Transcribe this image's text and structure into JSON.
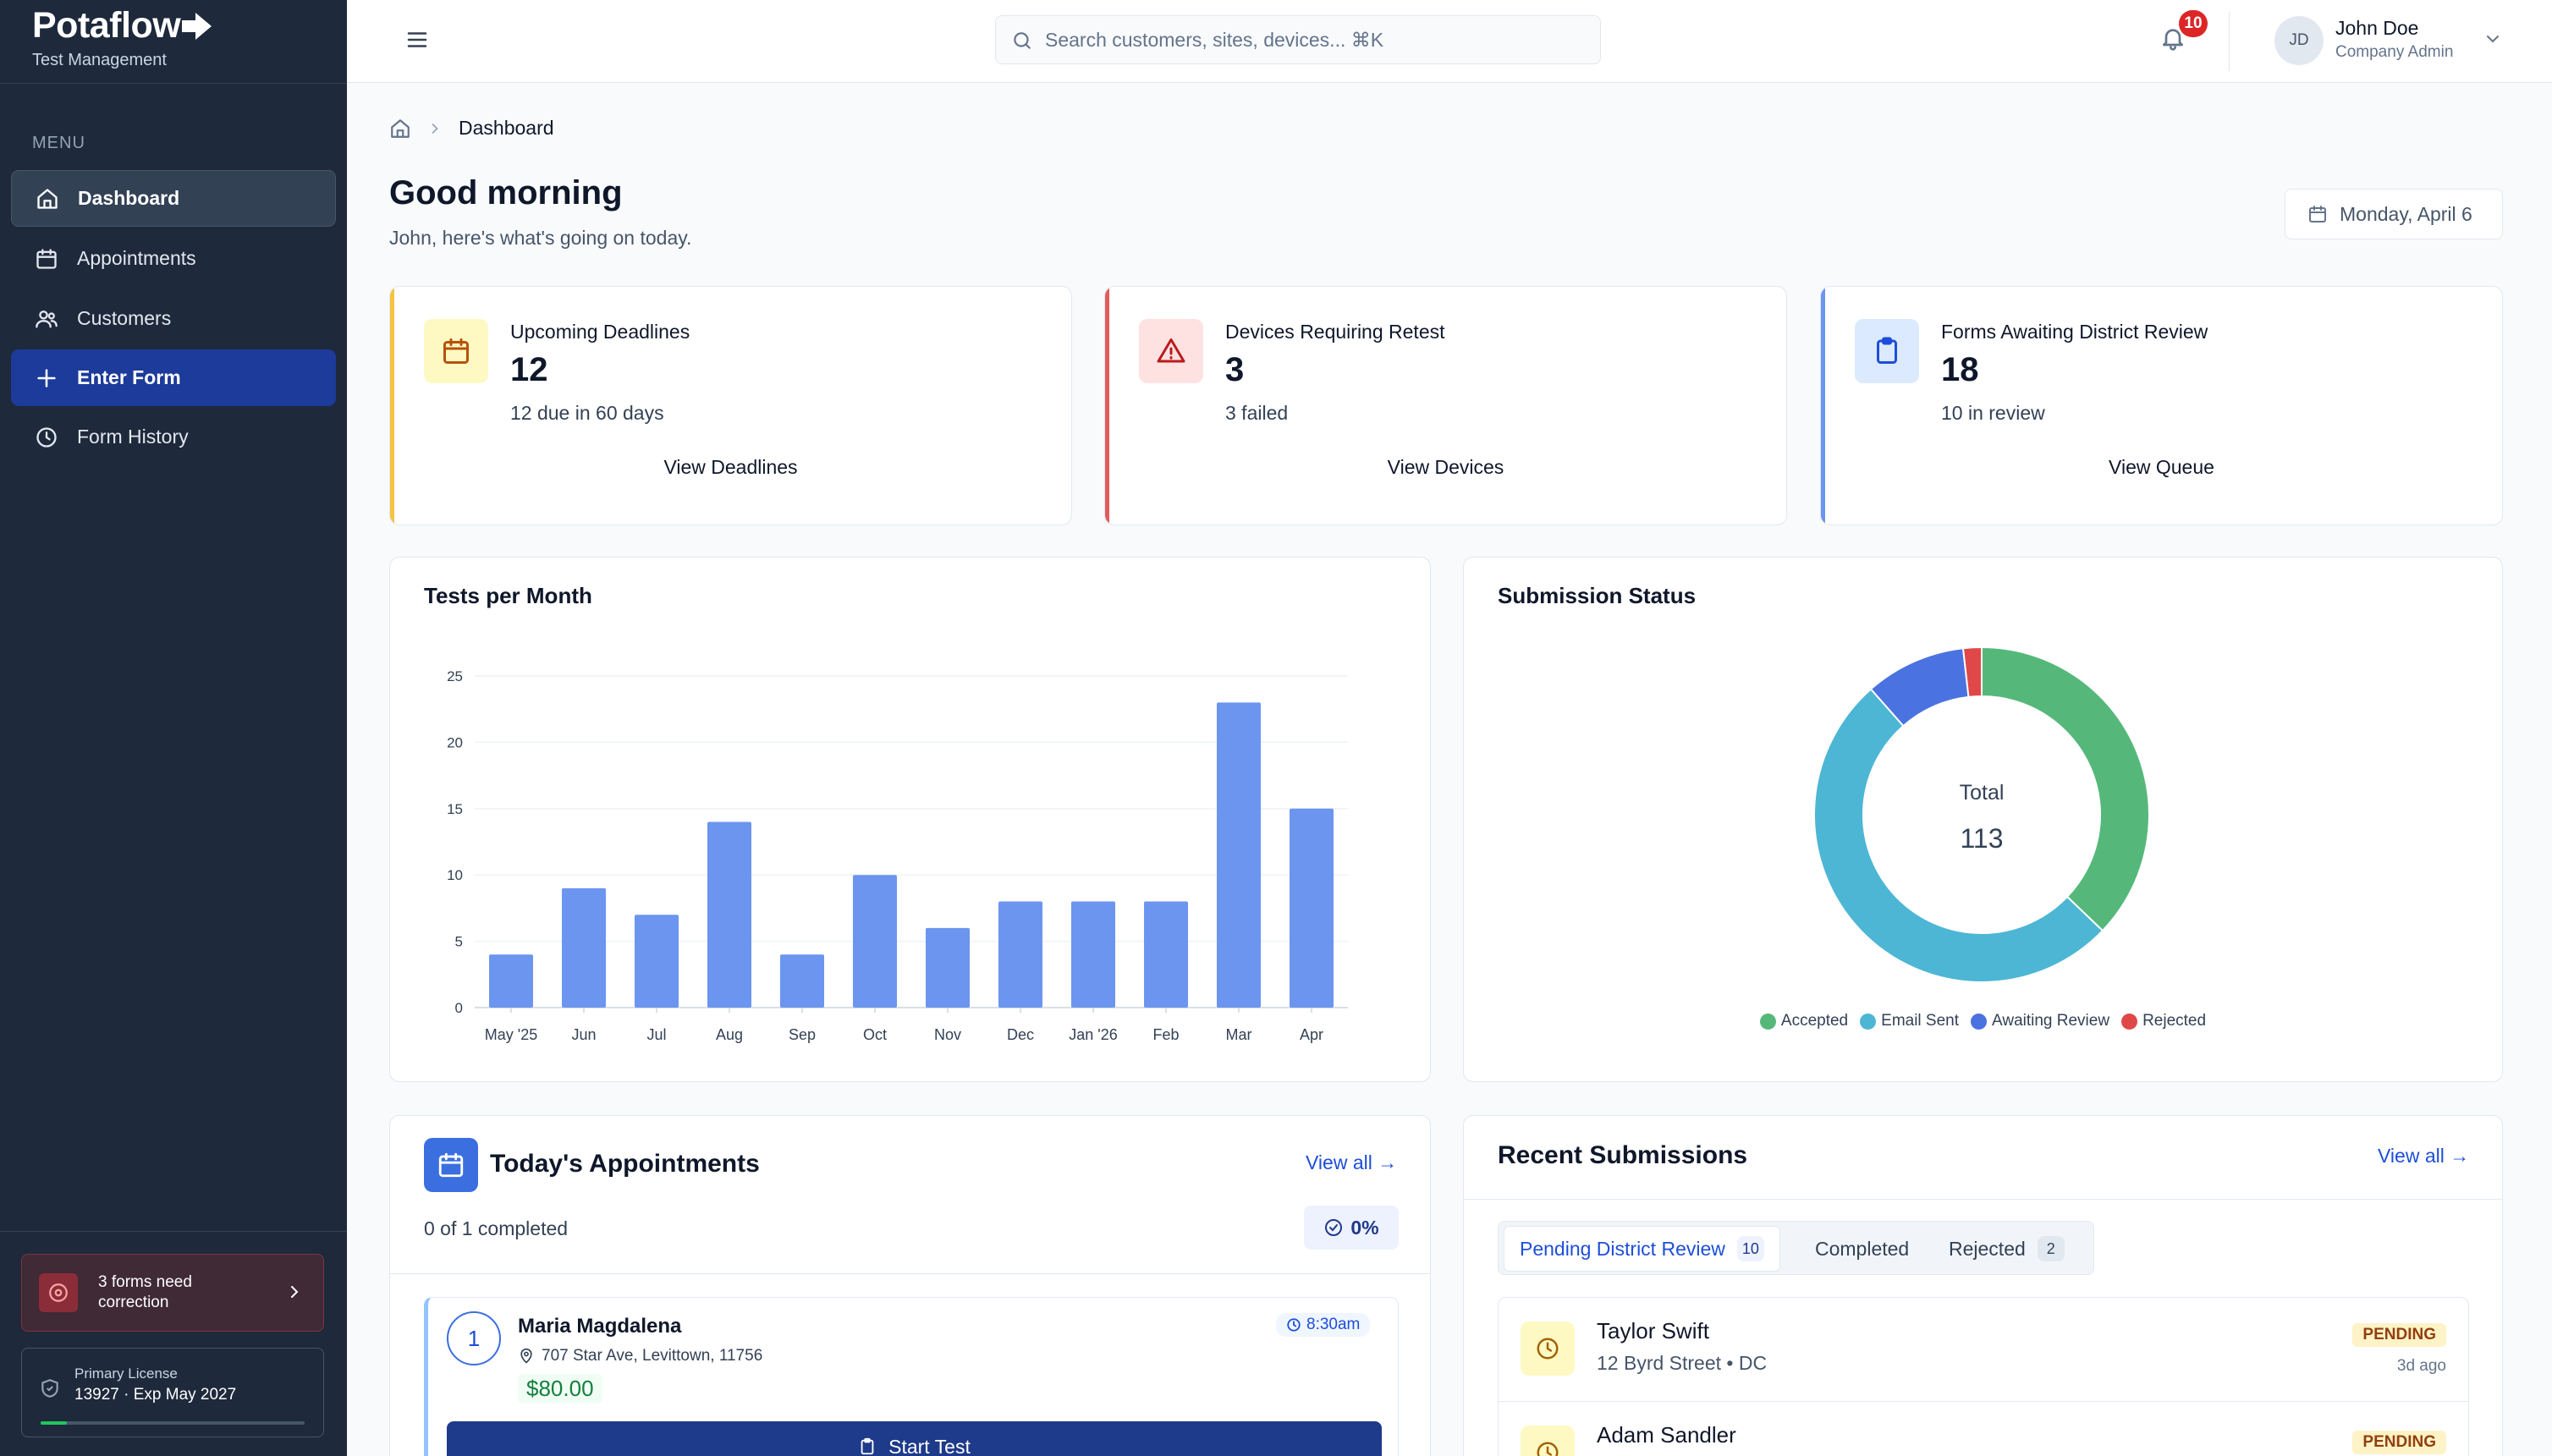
{
  "sidebar": {
    "brand": "Potaflow",
    "brand_sub": "Test Management",
    "menu_label": "MENU",
    "items": [
      {
        "label": "Dashboard",
        "icon": "home-icon"
      },
      {
        "label": "Appointments",
        "icon": "calendar-icon"
      },
      {
        "label": "Customers",
        "icon": "users-icon"
      },
      {
        "label": "Enter Form",
        "icon": "plus-icon"
      },
      {
        "label": "Form History",
        "icon": "clock-icon"
      }
    ],
    "alert_line1": "3 forms need",
    "alert_line2": "correction",
    "license_label": "Primary License",
    "license_value": "13927 · Exp May 2027",
    "license_progress": 0.1
  },
  "topbar": {
    "search_placeholder": "Search customers, sites, devices... ⌘K",
    "notifications": "10",
    "avatar_initials": "JD",
    "user_name": "John Doe",
    "user_role": "Company Admin"
  },
  "breadcrumb": {
    "current": "Dashboard"
  },
  "header": {
    "greeting": "Good morning",
    "subtitle": "John, here's what's going on today.",
    "date": "Monday, April 6"
  },
  "stats": [
    {
      "title": "Upcoming Deadlines",
      "value": "12",
      "sub": "12 due in 60 days",
      "link": "View Deadlines",
      "color": "#f5c242"
    },
    {
      "title": "Devices Requiring Retest",
      "value": "3",
      "sub": "3 failed",
      "link": "View Devices",
      "color": "#e25c5c"
    },
    {
      "title": "Forms Awaiting District Review",
      "value": "18",
      "sub": "10 in review",
      "link": "View Queue",
      "color": "#6b95ee"
    }
  ],
  "charts": {
    "tests_title": "Tests per Month",
    "status_title": "Submission Status",
    "donut_label": "Total",
    "donut_total": "113"
  },
  "chart_data": [
    {
      "type": "bar",
      "title": "Tests per Month",
      "categories": [
        "May '25",
        "Jun",
        "Jul",
        "Aug",
        "Sep",
        "Oct",
        "Nov",
        "Dec",
        "Jan '26",
        "Feb",
        "Mar",
        "Apr"
      ],
      "values": [
        4,
        9,
        7,
        14,
        4,
        10,
        6,
        8,
        8,
        8,
        23,
        15
      ],
      "yticks": [
        0,
        5,
        10,
        15,
        20,
        25
      ],
      "ylim": [
        0,
        25
      ],
      "color": "#6b95ee",
      "grid": true
    },
    {
      "type": "pie",
      "title": "Submission Status",
      "labels": [
        "Accepted",
        "Email Sent",
        "Awaiting Review",
        "Rejected"
      ],
      "values": [
        42,
        58,
        11,
        2
      ],
      "colors": [
        "#55b87a",
        "#4db6d4",
        "#4a72e0",
        "#e04848"
      ],
      "legend": "bottom"
    }
  ],
  "appointments": {
    "title": "Today's Appointments",
    "view_all": "View all →",
    "progress": "0 of 1 completed",
    "percent": "0%",
    "items": [
      {
        "num": "1",
        "name": "Maria Magdalena",
        "address": "707 Star Ave, Levittown, 11756",
        "price": "$80.00",
        "time": "8:30am",
        "action": "Start Test"
      }
    ]
  },
  "submissions": {
    "title": "Recent Submissions",
    "view_all": "View all →",
    "tabs": [
      {
        "label": "Pending District Review",
        "count": "10"
      },
      {
        "label": "Completed",
        "count": ""
      },
      {
        "label": "Rejected",
        "count": "2"
      }
    ],
    "items": [
      {
        "name": "Taylor Swift",
        "address": "12 Byrd Street • DC",
        "status": "PENDING",
        "ago": "3d ago"
      },
      {
        "name": "Adam Sandler",
        "address": "",
        "status": "PENDING",
        "ago": ""
      }
    ]
  }
}
